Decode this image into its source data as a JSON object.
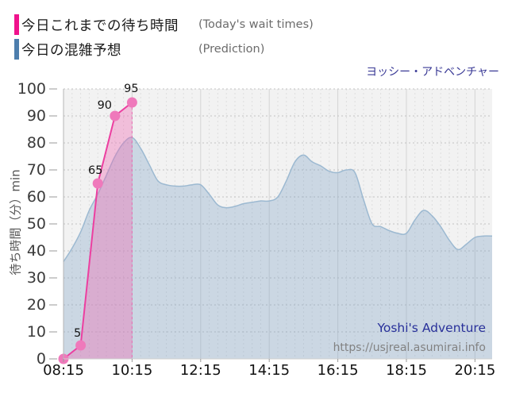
{
  "title": "ヨッシー・アドベンチャー",
  "legend": {
    "items": [
      {
        "swatch_color": "#f0128c",
        "label_jp": "今日これまでの待ち時間",
        "label_en": "(Today's wait times)"
      },
      {
        "swatch_color": "#4d7ead",
        "label_jp": "今日の混雑予想",
        "label_en": "(Prediction)"
      }
    ]
  },
  "watermark": {
    "name": "Yoshi's Adventure",
    "name_color": "#28309a",
    "url": "https://usjreal.asumirai.info",
    "url_color": "#828282"
  },
  "axes": {
    "y": {
      "label": "待ち時間（分）min",
      "min": 0,
      "max": 100,
      "tick_step": 10,
      "ticks": [
        0,
        10,
        20,
        30,
        40,
        50,
        60,
        70,
        80,
        90,
        100
      ]
    },
    "x": {
      "ticks": [
        "08:15",
        "10:15",
        "12:15",
        "14:15",
        "16:15",
        "18:15",
        "20:15"
      ],
      "start": "08:15",
      "end": "20:45",
      "minor_step_min": 15
    }
  },
  "plot": {
    "bg": "#f2f2f2",
    "grid_h_color": "#c3c3c3",
    "grid_v_minor_color": "#dedede",
    "grid_v_major_color": "#d4d4d4",
    "axis_color": "#b5b5b5"
  },
  "chart_data": {
    "type": "line+area",
    "x_unit": "time",
    "ylim": [
      0,
      100
    ],
    "xlabel": "",
    "ylabel": "待ち時間（分）min",
    "legend_position": "top-left",
    "grid": true,
    "series": [
      {
        "name": "今日これまでの待ち時間 (Today's wait times)",
        "kind": "line+area",
        "color": "#ec3fa0",
        "point_color": "#ef79bb",
        "fill": "rgba(240,105,180,0.38)",
        "points": [
          [
            "08:15",
            0
          ],
          [
            "08:45",
            5
          ],
          [
            "09:15",
            65
          ],
          [
            "09:45",
            90
          ],
          [
            "10:15",
            95
          ]
        ],
        "point_labels": [
          "",
          "5",
          "65",
          "90",
          "95"
        ]
      },
      {
        "name": "今日の混雑予想 (Prediction)",
        "kind": "smooth-area",
        "color": "#9cb9d1",
        "fill": "rgba(120,158,196,0.32)",
        "points": [
          [
            "08:15",
            36
          ],
          [
            "08:30",
            41
          ],
          [
            "08:45",
            47
          ],
          [
            "09:00",
            55
          ],
          [
            "09:15",
            61
          ],
          [
            "09:30",
            68
          ],
          [
            "09:45",
            75
          ],
          [
            "10:00",
            80
          ],
          [
            "10:15",
            82
          ],
          [
            "10:30",
            78
          ],
          [
            "10:45",
            72
          ],
          [
            "11:00",
            66
          ],
          [
            "11:15",
            64.5
          ],
          [
            "11:30",
            64
          ],
          [
            "11:45",
            64
          ],
          [
            "12:00",
            64.5
          ],
          [
            "12:15",
            64.5
          ],
          [
            "12:30",
            61
          ],
          [
            "12:45",
            57
          ],
          [
            "13:00",
            56
          ],
          [
            "13:15",
            56.5
          ],
          [
            "13:30",
            57.5
          ],
          [
            "13:45",
            58
          ],
          [
            "14:00",
            58.5
          ],
          [
            "14:15",
            58.5
          ],
          [
            "14:30",
            60
          ],
          [
            "14:45",
            66
          ],
          [
            "15:00",
            73
          ],
          [
            "15:15",
            75.5
          ],
          [
            "15:30",
            73
          ],
          [
            "15:45",
            71.5
          ],
          [
            "16:00",
            69.5
          ],
          [
            "16:15",
            69
          ],
          [
            "16:30",
            70
          ],
          [
            "16:45",
            69
          ],
          [
            "17:00",
            59
          ],
          [
            "17:15",
            50
          ],
          [
            "17:30",
            49
          ],
          [
            "17:45",
            47.5
          ],
          [
            "18:00",
            46.5
          ],
          [
            "18:15",
            46.5
          ],
          [
            "18:30",
            51.5
          ],
          [
            "18:45",
            55
          ],
          [
            "19:00",
            53
          ],
          [
            "19:15",
            49
          ],
          [
            "19:30",
            44
          ],
          [
            "19:45",
            40.5
          ],
          [
            "20:00",
            42.5
          ],
          [
            "20:15",
            45
          ],
          [
            "20:30",
            45.5
          ],
          [
            "20:45",
            45.5
          ]
        ]
      }
    ]
  }
}
